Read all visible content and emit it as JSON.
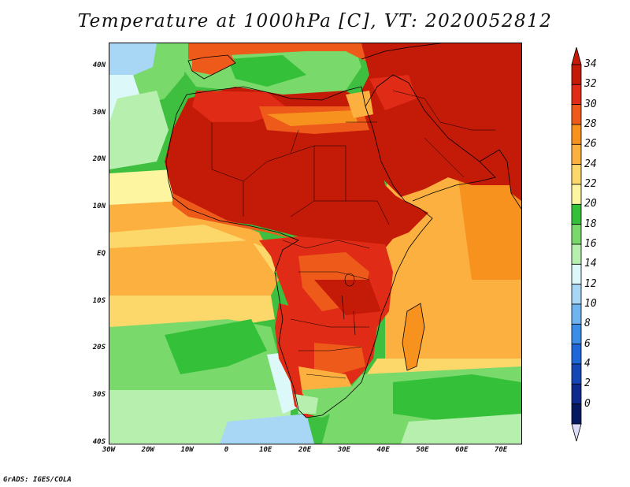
{
  "title": "Temperature at 1000hPa [C], VT: 2020052812",
  "credit": "GrADS: IGES/COLA",
  "map": {
    "projection": "lat-lon",
    "lon_range": [
      -30,
      75
    ],
    "lat_range": [
      -40,
      45
    ],
    "variable": "temperature_1000hPa",
    "units": "C"
  },
  "lat_ticks": [
    {
      "value": 40,
      "label": "40N"
    },
    {
      "value": 30,
      "label": "30N"
    },
    {
      "value": 20,
      "label": "20N"
    },
    {
      "value": 10,
      "label": "10N"
    },
    {
      "value": 0,
      "label": "EQ"
    },
    {
      "value": -10,
      "label": "10S"
    },
    {
      "value": -20,
      "label": "20S"
    },
    {
      "value": -30,
      "label": "30S"
    },
    {
      "value": -40,
      "label": "40S"
    }
  ],
  "lon_ticks": [
    {
      "value": -30,
      "label": "30W"
    },
    {
      "value": -20,
      "label": "20W"
    },
    {
      "value": -10,
      "label": "10W"
    },
    {
      "value": 0,
      "label": "0"
    },
    {
      "value": 10,
      "label": "10E"
    },
    {
      "value": 20,
      "label": "20E"
    },
    {
      "value": 30,
      "label": "30E"
    },
    {
      "value": 40,
      "label": "40E"
    },
    {
      "value": 50,
      "label": "50E"
    },
    {
      "value": 60,
      "label": "60E"
    },
    {
      "value": 70,
      "label": "70E"
    }
  ],
  "colorbar": {
    "levels": [
      {
        "label": "34",
        "color": "#c41a08"
      },
      {
        "label": "32",
        "color": "#e02c16"
      },
      {
        "label": "30",
        "color": "#ee5a1a"
      },
      {
        "label": "28",
        "color": "#f7921f"
      },
      {
        "label": "26",
        "color": "#fbb040"
      },
      {
        "label": "24",
        "color": "#fcd86b"
      },
      {
        "label": "22",
        "color": "#fdf5a0"
      },
      {
        "label": "20",
        "color": "#35c03a"
      },
      {
        "label": "18",
        "color": "#7ad96b"
      },
      {
        "label": "16",
        "color": "#b6efae"
      },
      {
        "label": "14",
        "color": "#dcf8f8"
      },
      {
        "label": "12",
        "color": "#a7d7f5"
      },
      {
        "label": "10",
        "color": "#6fb3ef"
      },
      {
        "label": "8",
        "color": "#3b8ee8"
      },
      {
        "label": "6",
        "color": "#1f66d8"
      },
      {
        "label": "4",
        "color": "#1546b8"
      },
      {
        "label": "2",
        "color": "#0d2a8c"
      },
      {
        "label": "0",
        "color": "#061860"
      }
    ],
    "over_color": "#c41a08",
    "under_color": "#dcdcf8"
  }
}
